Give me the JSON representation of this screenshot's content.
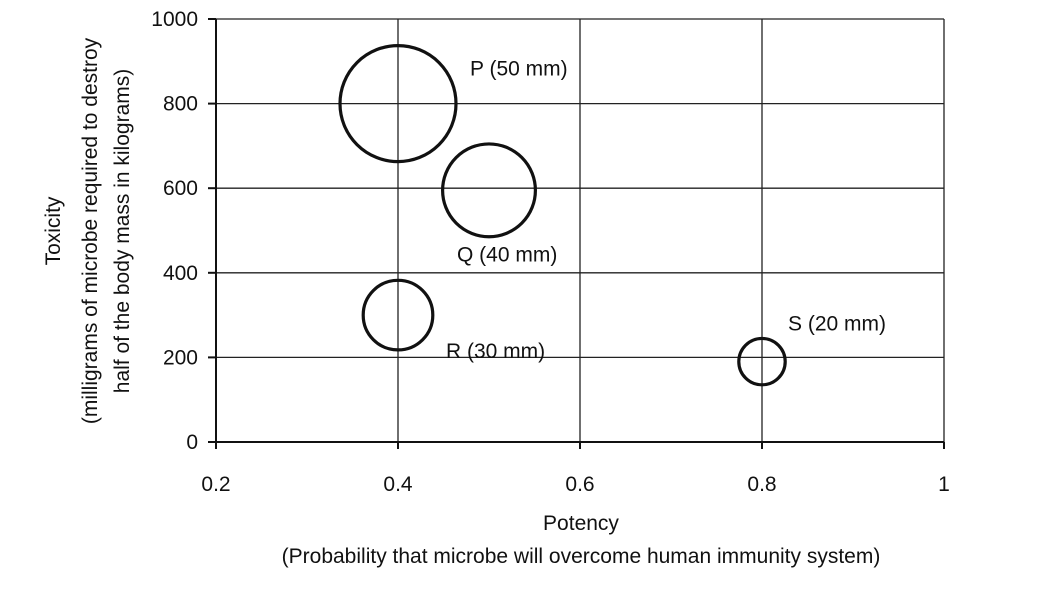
{
  "chart_data": {
    "type": "bubble",
    "xlabel": "Potency",
    "xlabel_sub": "(Probability that microbe will overcome human immunity system)",
    "ylabel_lines": [
      "Toxicity",
      "(milligrams of microbe required to destroy",
      "half of the body mass in kilograms)"
    ],
    "xlim": [
      0.2,
      1
    ],
    "ylim": [
      0,
      1000
    ],
    "x_ticks": [
      0.2,
      0.4,
      0.6,
      0.8,
      1
    ],
    "x_tick_labels": [
      "0.2",
      "0.4",
      "0.6",
      "0.8",
      "1"
    ],
    "y_ticks": [
      0,
      200,
      400,
      600,
      800,
      1000
    ],
    "y_tick_labels": [
      "0",
      "200",
      "400",
      "600",
      "800",
      "1000"
    ],
    "grid": true,
    "points": [
      {
        "label": "P (50 mm)",
        "x": 0.4,
        "y": 800,
        "size_mm": 50
      },
      {
        "label": "Q (40 mm)",
        "x": 0.5,
        "y": 595,
        "size_mm": 40
      },
      {
        "label": "R (30 mm)",
        "x": 0.4,
        "y": 300,
        "size_mm": 30
      },
      {
        "label": "S (20 mm)",
        "x": 0.8,
        "y": 190,
        "size_mm": 20
      }
    ]
  }
}
